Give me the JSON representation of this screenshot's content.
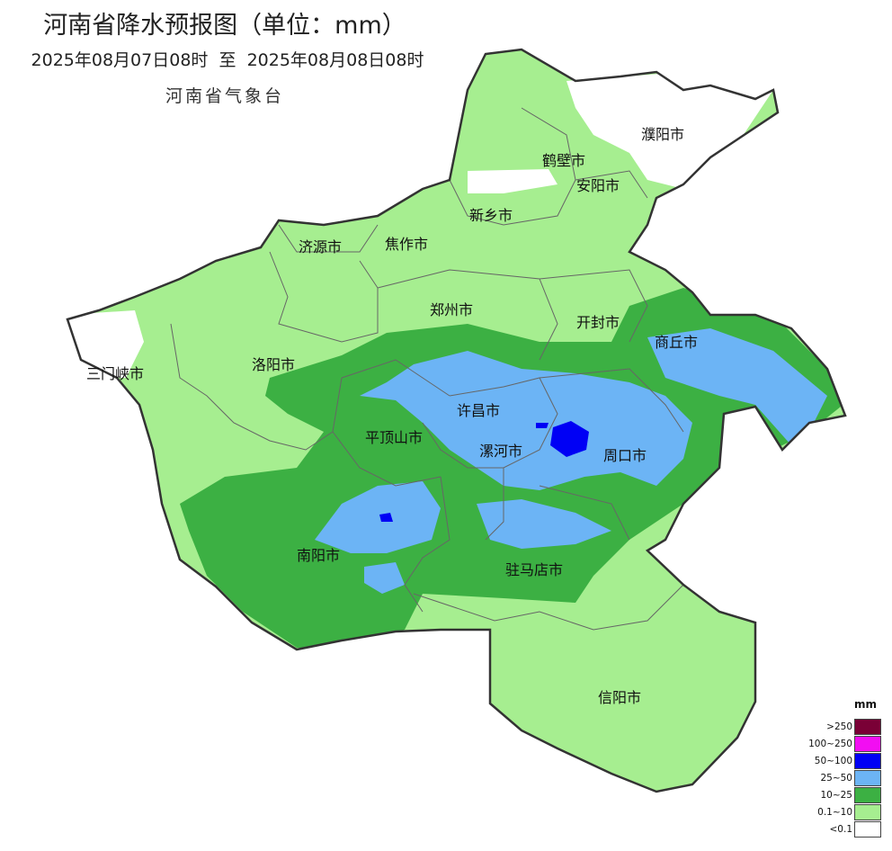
{
  "header": {
    "title": "河南省降水预报图（单位：mm）",
    "period": "2025年08月07日08时  至  2025年08月08日08时",
    "agency": "河南省气象台"
  },
  "cities": [
    {
      "name": "濮阳市"
    },
    {
      "name": "鹤壁市"
    },
    {
      "name": "安阳市"
    },
    {
      "name": "新乡市"
    },
    {
      "name": "济源市"
    },
    {
      "name": "焦作市"
    },
    {
      "name": "郑州市"
    },
    {
      "name": "开封市"
    },
    {
      "name": "商丘市"
    },
    {
      "name": "三门峡市"
    },
    {
      "name": "洛阳市"
    },
    {
      "name": "许昌市"
    },
    {
      "name": "平顶山市"
    },
    {
      "name": "漯河市"
    },
    {
      "name": "周口市"
    },
    {
      "name": "南阳市"
    },
    {
      "name": "驻马店市"
    },
    {
      "name": "信阳市"
    }
  ],
  "legend": {
    "unit": "mm",
    "items": [
      {
        "label": ">250",
        "color": "#7a0036"
      },
      {
        "label": "100~250",
        "color": "#f20ef2"
      },
      {
        "label": "50~100",
        "color": "#0000f5"
      },
      {
        "label": "25~50",
        "color": "#6cb4f5"
      },
      {
        "label": "10~25",
        "color": "#3cb043"
      },
      {
        "label": "0.1~10",
        "color": "#a6ee90"
      },
      {
        "label": "<0.1",
        "color": "#ffffff"
      }
    ]
  }
}
